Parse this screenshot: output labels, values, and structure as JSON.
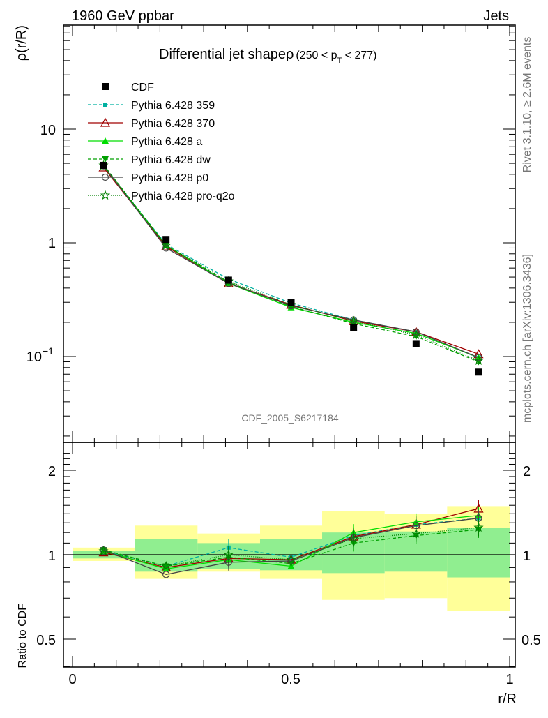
{
  "header": {
    "left": "1960 GeV ppbar",
    "right": "Jets"
  },
  "side_text": {
    "rivet": "Rivet 3.1.10, ≥ 2.6M events",
    "mcplots": "mcplots.cern.ch [arXiv:1306.3436]"
  },
  "watermark": "CDF_2005_S6217184",
  "title": {
    "main": "Differential jet shapeρ",
    "range_prefix": "(250 < p",
    "range_sub": "T",
    "range_suffix": " < 277)"
  },
  "axis_labels": {
    "main_y": "ρ(r/R)",
    "ratio_y": "Ratio to CDF",
    "x": "r/R"
  },
  "tick_labels": {
    "main_y": [
      "10",
      "1",
      "10",
      "−1"
    ],
    "ratio_y": [
      "2",
      "1",
      "0.5"
    ],
    "x": [
      "0",
      "0.5",
      "1"
    ]
  },
  "legend": [
    {
      "label": "CDF",
      "color": "#000000",
      "marker": "square-filled",
      "dash": ""
    },
    {
      "label": "Pythia 6.428 359",
      "color": "#00b0a0",
      "marker": "square-small",
      "dash": "5,3"
    },
    {
      "label": "Pythia 6.428 370",
      "color": "#a00000",
      "marker": "triangle-open",
      "dash": ""
    },
    {
      "label": "Pythia 6.428 a",
      "color": "#00dd00",
      "marker": "triangle-filled",
      "dash": ""
    },
    {
      "label": "Pythia 6.428 dw",
      "color": "#00a000",
      "marker": "triangle-down-filled",
      "dash": "5,3"
    },
    {
      "label": "Pythia 6.428 p0",
      "color": "#444444",
      "marker": "circle-open",
      "dash": ""
    },
    {
      "label": "Pythia 6.428 pro-q2o",
      "color": "#008000",
      "marker": "star-open",
      "dash": "1,2"
    }
  ],
  "chart_data": [
    {
      "type": "line",
      "title": "Differential jet shapeρ (250 < pT < 277)",
      "xlabel": "r/R",
      "ylabel": "ρ(r/R)",
      "yscale": "log",
      "xlim": [
        -0.02,
        1.0
      ],
      "ylim": [
        0.02,
        50
      ],
      "x": [
        0.071,
        0.214,
        0.357,
        0.5,
        0.643,
        0.786,
        0.929
      ],
      "x_bin_edges": [
        0.0,
        0.143,
        0.286,
        0.429,
        0.571,
        0.714,
        0.857,
        1.0
      ],
      "legend_position": "top-left",
      "series": [
        {
          "name": "CDF",
          "values": [
            4.8,
            1.07,
            0.47,
            0.3,
            0.18,
            0.13,
            0.073
          ]
        },
        {
          "name": "Pythia 6.428 359",
          "values": [
            4.75,
            0.97,
            0.48,
            0.295,
            0.21,
            0.165,
            0.097
          ]
        },
        {
          "name": "Pythia 6.428 370",
          "values": [
            4.6,
            0.93,
            0.44,
            0.285,
            0.205,
            0.165,
            0.105
          ]
        },
        {
          "name": "Pythia 6.428 a",
          "values": [
            4.7,
            0.95,
            0.44,
            0.27,
            0.2,
            0.16,
            0.098
          ]
        },
        {
          "name": "Pythia 6.428 dw",
          "values": [
            4.85,
            0.95,
            0.45,
            0.275,
            0.195,
            0.15,
            0.09
          ]
        },
        {
          "name": "Pythia 6.428 p0",
          "values": [
            4.75,
            0.9,
            0.44,
            0.28,
            0.21,
            0.165,
            0.098
          ]
        },
        {
          "name": "Pythia 6.428 pro-q2o",
          "values": [
            4.8,
            0.95,
            0.46,
            0.285,
            0.205,
            0.155,
            0.092
          ]
        }
      ]
    },
    {
      "type": "line",
      "xlabel": "r/R",
      "ylabel": "Ratio to CDF",
      "yscale": "log",
      "xlim": [
        -0.02,
        1.0
      ],
      "ylim": [
        0.4,
        2.4
      ],
      "x": [
        0.071,
        0.214,
        0.357,
        0.5,
        0.643,
        0.786,
        0.929
      ],
      "reference_line": 1,
      "uncertainty_bands": {
        "x_bin_edges": [
          0.0,
          0.143,
          0.286,
          0.429,
          0.571,
          0.714,
          0.857,
          1.0
        ],
        "inner_green": [
          [
            0.97,
            1.03
          ],
          [
            0.87,
            1.14
          ],
          [
            0.89,
            1.1
          ],
          [
            0.88,
            1.14
          ],
          [
            0.86,
            1.2
          ],
          [
            0.87,
            1.21
          ],
          [
            0.83,
            1.25
          ]
        ],
        "outer_yellow": [
          [
            0.95,
            1.06
          ],
          [
            0.82,
            1.27
          ],
          [
            0.87,
            1.19
          ],
          [
            0.82,
            1.27
          ],
          [
            0.69,
            1.43
          ],
          [
            0.7,
            1.4
          ],
          [
            0.63,
            1.49
          ]
        ],
        "inner_color": "#90ee90",
        "outer_color": "#ffff99"
      },
      "series": [
        {
          "name": "Pythia 6.428 359",
          "values": [
            1.03,
            0.91,
            1.06,
            0.98,
            1.17,
            1.28,
            1.35
          ]
        },
        {
          "name": "Pythia 6.428 370",
          "values": [
            1.02,
            0.9,
            0.97,
            0.96,
            1.16,
            1.28,
            1.46
          ]
        },
        {
          "name": "Pythia 6.428 a",
          "values": [
            1.03,
            0.89,
            0.96,
            0.91,
            1.2,
            1.31,
            1.38
          ]
        },
        {
          "name": "Pythia 6.428 dw",
          "values": [
            1.04,
            0.91,
            0.98,
            0.93,
            1.1,
            1.17,
            1.23
          ]
        },
        {
          "name": "Pythia 6.428 p0",
          "values": [
            1.04,
            0.85,
            0.94,
            0.95,
            1.15,
            1.27,
            1.35
          ]
        },
        {
          "name": "Pythia 6.428 pro-q2o",
          "values": [
            1.03,
            0.91,
            1.0,
            0.96,
            1.14,
            1.19,
            1.25
          ]
        }
      ]
    }
  ]
}
